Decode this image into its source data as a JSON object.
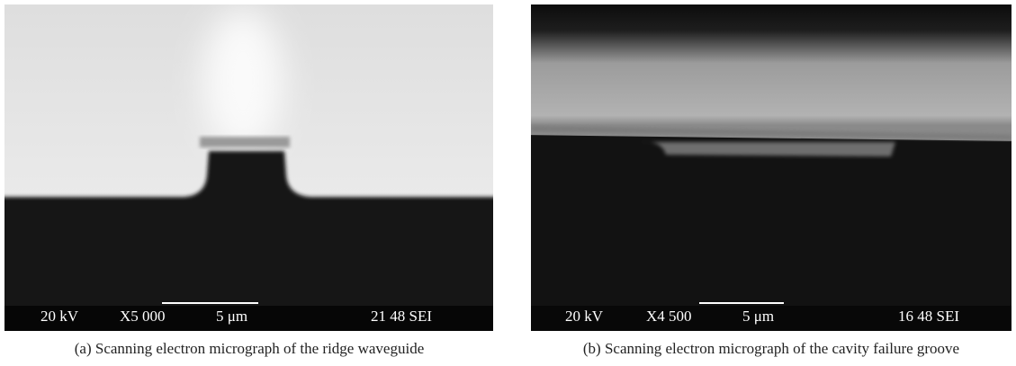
{
  "panels": [
    {
      "voltage": "20 kV",
      "magnification": "X5 000",
      "scale_bar": "5 μm",
      "info": "21 48 SEI",
      "caption": "(a) Scanning electron micrograph of the ridge waveguide"
    },
    {
      "voltage": "20 kV",
      "magnification": "X4 500",
      "scale_bar": "5 μm",
      "info": "16 48 SEI",
      "caption": "(b) Scanning electron micrograph of the cavity failure groove"
    }
  ]
}
